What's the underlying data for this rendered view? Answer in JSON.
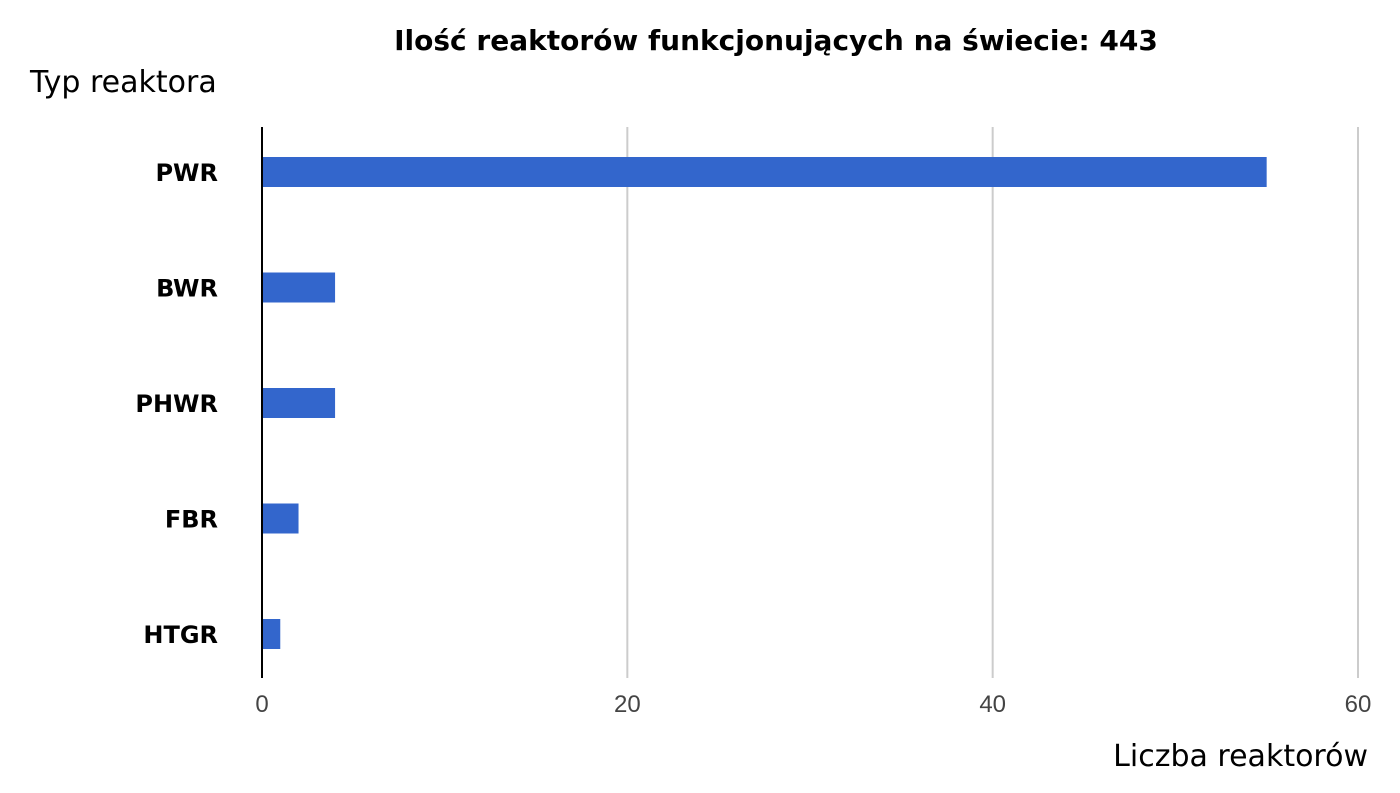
{
  "chart_data": {
    "type": "bar",
    "orientation": "horizontal",
    "title": "Ilość reaktorów funkcjonujących na świecie: 443",
    "ylabel": "Typ reaktora",
    "xlabel": "Liczba reaktorów",
    "categories": [
      "PWR",
      "BWR",
      "PHWR",
      "FBR",
      "HTGR"
    ],
    "values": [
      55,
      4,
      4,
      2,
      1
    ],
    "xlim": [
      0,
      60
    ],
    "xticks": [
      0,
      20,
      40,
      60
    ],
    "grid": true,
    "bar_color": "#3366CC"
  }
}
